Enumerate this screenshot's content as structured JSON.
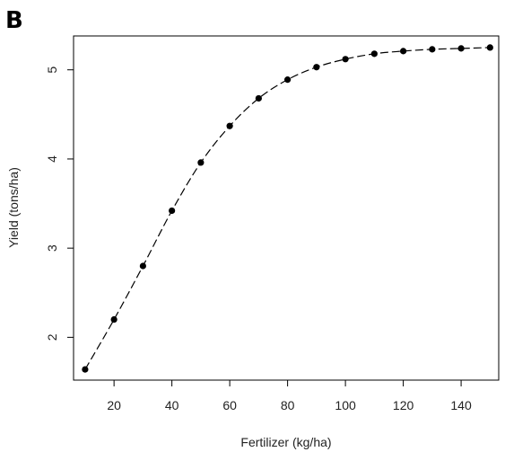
{
  "panel_label": "B",
  "chart_data": {
    "type": "line",
    "title": "",
    "xlabel": "Fertilizer (kg/ha)",
    "ylabel": "Yield (tons/ha)",
    "xlim": [
      6,
      153
    ],
    "ylim": [
      1.52,
      5.38
    ],
    "xticks": [
      20,
      40,
      60,
      80,
      100,
      120,
      140
    ],
    "yticks": [
      2,
      3,
      4,
      5
    ],
    "line_style": "dashed",
    "marker": "filled-circle",
    "series": [
      {
        "x": [
          10,
          20,
          30,
          40,
          50,
          60,
          70,
          80,
          90,
          100,
          110,
          120,
          130,
          140,
          150
        ],
        "values": [
          1.64,
          2.2,
          2.8,
          3.42,
          3.96,
          4.37,
          4.68,
          4.89,
          5.03,
          5.12,
          5.18,
          5.21,
          5.23,
          5.24,
          5.25
        ]
      }
    ],
    "grid": false,
    "legend": "none"
  }
}
